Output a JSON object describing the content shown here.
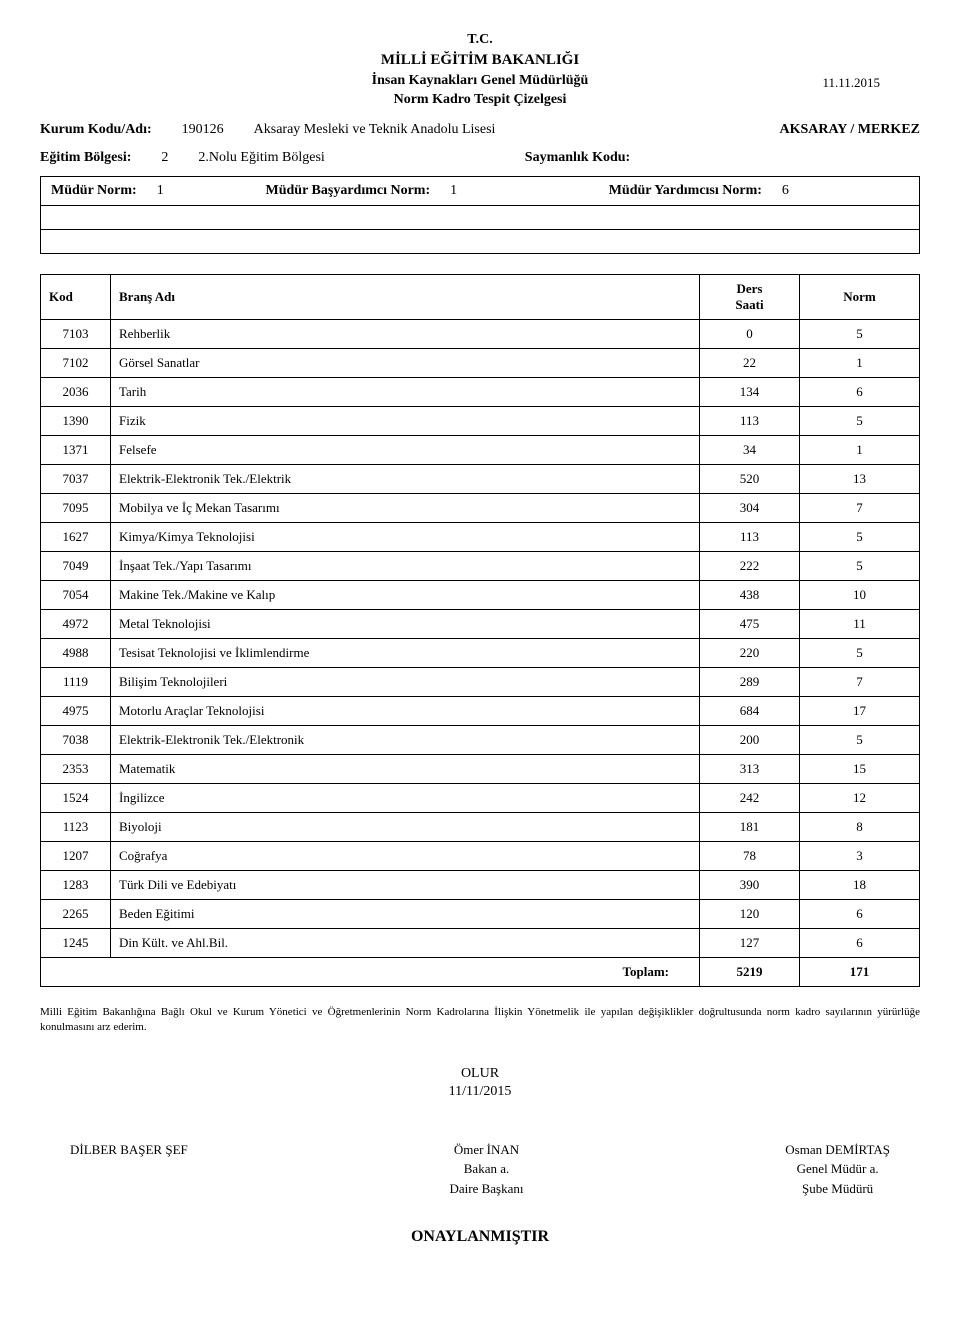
{
  "header": {
    "line1": "T.C.",
    "line2": "MİLLİ EĞİTİM BAKANLIĞI",
    "line3": "İnsan Kaynakları Genel Müdürlüğü",
    "line4": "Norm Kadro Tespit Çizelgesi",
    "date": "11.11.2015"
  },
  "kurum": {
    "label": "Kurum Kodu/Adı:",
    "code": "190126",
    "name": "Aksaray Mesleki ve Teknik Anadolu Lisesi",
    "loc": "AKSARAY /  MERKEZ"
  },
  "egitim": {
    "label": "Eğitim Bölgesi:",
    "num": "2",
    "desc": "2.Nolu Eğitim Bölgesi",
    "sk": "Saymanlık Kodu:"
  },
  "norms": {
    "mudur_l": "Müdür Norm:",
    "mudur_v": "1",
    "bas_l": "Müdür Başyardımcı Norm:",
    "bas_v": "1",
    "yard_l": "Müdür Yardımcısı Norm:",
    "yard_v": "6"
  },
  "tableHead": {
    "kod": "Kod",
    "brans": "Branş Adı",
    "ders": "Ders\nSaati",
    "norm": "Norm"
  },
  "rows": [
    {
      "kod": "7103",
      "brans": "Rehberlik",
      "ders": "0",
      "norm": "5"
    },
    {
      "kod": "7102",
      "brans": "Görsel Sanatlar",
      "ders": "22",
      "norm": "1"
    },
    {
      "kod": "2036",
      "brans": "Tarih",
      "ders": "134",
      "norm": "6"
    },
    {
      "kod": "1390",
      "brans": "Fizik",
      "ders": "113",
      "norm": "5"
    },
    {
      "kod": "1371",
      "brans": "Felsefe",
      "ders": "34",
      "norm": "1"
    },
    {
      "kod": "7037",
      "brans": "Elektrik-Elektronik Tek./Elektrik",
      "ders": "520",
      "norm": "13"
    },
    {
      "kod": "7095",
      "brans": "Mobilya ve İç Mekan Tasarımı",
      "ders": "304",
      "norm": "7"
    },
    {
      "kod": "1627",
      "brans": "Kimya/Kimya Teknolojisi",
      "ders": "113",
      "norm": "5"
    },
    {
      "kod": "7049",
      "brans": "İnşaat Tek./Yapı Tasarımı",
      "ders": "222",
      "norm": "5"
    },
    {
      "kod": "7054",
      "brans": "Makine Tek./Makine ve Kalıp",
      "ders": "438",
      "norm": "10"
    },
    {
      "kod": "4972",
      "brans": "Metal Teknolojisi",
      "ders": "475",
      "norm": "11"
    },
    {
      "kod": "4988",
      "brans": "Tesisat Teknolojisi ve İklimlendirme",
      "ders": "220",
      "norm": "5"
    },
    {
      "kod": "1119",
      "brans": "Bilişim Teknolojileri",
      "ders": "289",
      "norm": "7"
    },
    {
      "kod": "4975",
      "brans": "Motorlu Araçlar Teknolojisi",
      "ders": "684",
      "norm": "17"
    },
    {
      "kod": "7038",
      "brans": "Elektrik-Elektronik Tek./Elektronik",
      "ders": "200",
      "norm": "5"
    },
    {
      "kod": "2353",
      "brans": "Matematik",
      "ders": "313",
      "norm": "15"
    },
    {
      "kod": "1524",
      "brans": "İngilizce",
      "ders": "242",
      "norm": "12"
    },
    {
      "kod": "1123",
      "brans": "Biyoloji",
      "ders": "181",
      "norm": "8"
    },
    {
      "kod": "1207",
      "brans": "Coğrafya",
      "ders": "78",
      "norm": "3"
    },
    {
      "kod": "1283",
      "brans": "Türk Dili ve Edebiyatı",
      "ders": "390",
      "norm": "18"
    },
    {
      "kod": "2265",
      "brans": "Beden Eğitimi",
      "ders": "120",
      "norm": "6"
    },
    {
      "kod": "1245",
      "brans": "Din Kült. ve Ahl.Bil.",
      "ders": "127",
      "norm": "6"
    }
  ],
  "total": {
    "label": "Toplam:",
    "ders": "5219",
    "norm": "171"
  },
  "footText": "Milli Eğitim Bakanlığına Bağlı Okul ve Kurum Yönetici  ve Öğretmenlerinin Norm Kadrolarına İlişkin Yönetmelik ile  yapılan değişiklikler doğrultusunda norm kadro sayılarının yürürlüğe konulmasını arz ederim.",
  "olur": {
    "text": "OLUR",
    "date": "11/11/2015"
  },
  "sigs": {
    "left": {
      "line1": "DİLBER BAŞER ŞEF",
      "line2": "",
      "line3": ""
    },
    "mid": {
      "line1": "Ömer İNAN",
      "line2": "Bakan a.",
      "line3": "Daire Başkanı"
    },
    "right": {
      "line1": "Osman DEMİRTAŞ",
      "line2": "Genel Müdür a.",
      "line3": "Şube Müdürü"
    }
  },
  "onay": "ONAYLANMIŞTIR"
}
